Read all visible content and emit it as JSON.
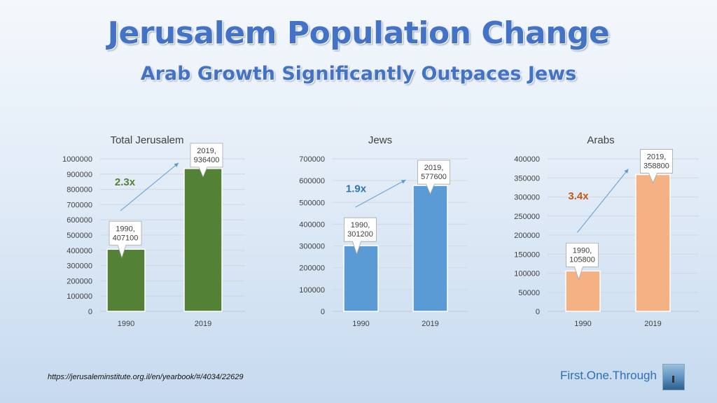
{
  "header": {
    "title": "Jerusalem Population Change",
    "subtitle": "Arab Growth Significantly Outpaces Jews"
  },
  "footer": {
    "source": "https://jerusaleminstitute.org.il/en/yearbook/#/4034/22629",
    "brand": "First.One.Through"
  },
  "colors": {
    "title": "#4472c4",
    "total": "#538135",
    "jews": "#5b9bd5",
    "arabs": "#f4b183"
  },
  "chart_data": [
    {
      "type": "bar",
      "title": "Total Jerusalem",
      "categories": [
        "1990",
        "2019"
      ],
      "values": [
        407100,
        936400
      ],
      "data_labels": [
        "1990,\n407100",
        "2019,\n936400"
      ],
      "ylim": [
        0,
        1000000
      ],
      "ytick_step": 100000,
      "ytick_labels": [
        "0",
        "100000",
        "200000",
        "300000",
        "400000",
        "500000",
        "600000",
        "700000",
        "800000",
        "900000",
        "1000000"
      ],
      "color": "#538135",
      "annotation": {
        "text": "2.3x",
        "color": "#538135"
      },
      "grid": true
    },
    {
      "type": "bar",
      "title": "Jews",
      "categories": [
        "1990",
        "2019"
      ],
      "values": [
        301200,
        577600
      ],
      "data_labels": [
        "1990,\n301200",
        "2019,\n577600"
      ],
      "ylim": [
        0,
        700000
      ],
      "ytick_step": 100000,
      "ytick_labels": [
        "0",
        "100000",
        "200000",
        "300000",
        "400000",
        "500000",
        "600000",
        "700000"
      ],
      "color": "#5b9bd5",
      "annotation": {
        "text": "1.9x",
        "color": "#2e75b6"
      },
      "grid": true
    },
    {
      "type": "bar",
      "title": "Arabs",
      "categories": [
        "1990",
        "2019"
      ],
      "values": [
        105800,
        358800
      ],
      "data_labels": [
        "1990,\n105800",
        "2019,\n358800"
      ],
      "ylim": [
        0,
        400000
      ],
      "ytick_step": 50000,
      "ytick_labels": [
        "0",
        "50000",
        "100000",
        "150000",
        "200000",
        "250000",
        "300000",
        "350000",
        "400000"
      ],
      "color": "#f4b183",
      "annotation": {
        "text": "3.4x",
        "color": "#c55a11"
      },
      "grid": true
    }
  ]
}
